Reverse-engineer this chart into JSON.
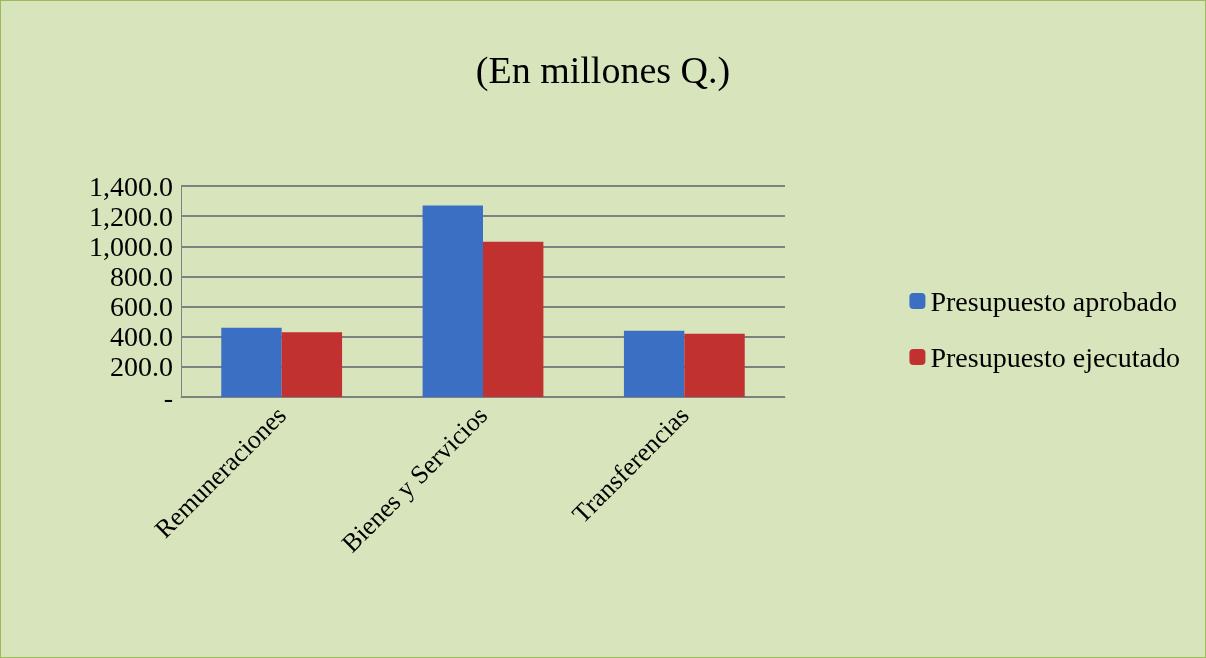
{
  "chart_data": {
    "type": "bar",
    "title": "(En millones Q.)",
    "categories": [
      "Remuneraciones",
      "Bienes y Servicios",
      "Transferencias"
    ],
    "series": [
      {
        "name": "Presupuesto aprobado",
        "color": "#3a6fc4",
        "values": [
          460,
          1270,
          440
        ]
      },
      {
        "name": "Presupuesto ejecutado",
        "color": "#c0312f",
        "values": [
          430,
          1030,
          420
        ]
      }
    ],
    "ylim": [
      0,
      1400
    ],
    "yticks": [
      {
        "value": 0,
        "label": "-"
      },
      {
        "value": 200,
        "label": "200.0"
      },
      {
        "value": 400,
        "label": "400.0"
      },
      {
        "value": 600,
        "label": "600.0"
      },
      {
        "value": 800,
        "label": "800.0"
      },
      {
        "value": 1000,
        "label": "1,000.0"
      },
      {
        "value": 1200,
        "label": "1,200.0"
      },
      {
        "value": 1400,
        "label": "1,400.0"
      }
    ],
    "grid": "y",
    "legend": "right"
  }
}
